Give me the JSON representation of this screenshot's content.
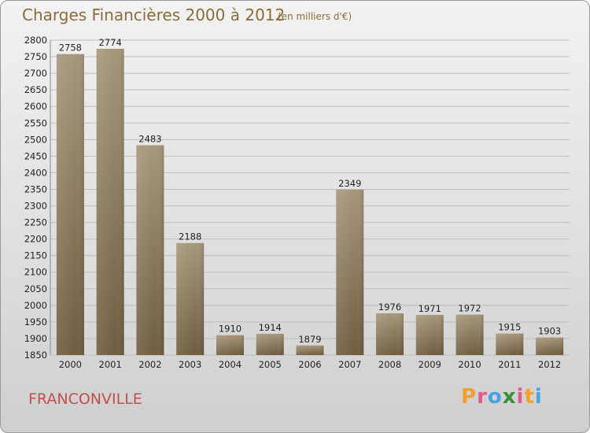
{
  "header": {
    "title": "Charges Financières 2000 à 2012",
    "subtitle": "(en milliers d'€)"
  },
  "footer": {
    "city": "FRANCONVILLE",
    "logo_letters": [
      "P",
      "r",
      "o",
      "x",
      "i",
      "t",
      "i"
    ],
    "logo_colors": [
      "#f0a030",
      "#e05a8c",
      "#4aa3df",
      "#3a8f3a",
      "#e05a8c",
      "#f0a030",
      "#4aa3df"
    ]
  },
  "colors": {
    "bar_top": "#a6967a",
    "bar_bottom": "#6e5d40",
    "grid": "#bdbdbd"
  },
  "chart_data": {
    "type": "bar",
    "title": "Charges Financières 2000 à 2012",
    "subtitle": "(en milliers d'€)",
    "categories": [
      "2000",
      "2001",
      "2002",
      "2003",
      "2004",
      "2005",
      "2006",
      "2007",
      "2008",
      "2009",
      "2010",
      "2011",
      "2012"
    ],
    "values": [
      2758,
      2774,
      2483,
      2188,
      1910,
      1914,
      1879,
      2349,
      1976,
      1971,
      1972,
      1915,
      1903
    ],
    "ylim": [
      1850,
      2800
    ],
    "yticks": [
      1850,
      1900,
      1950,
      2000,
      2050,
      2100,
      2150,
      2200,
      2250,
      2300,
      2350,
      2400,
      2450,
      2500,
      2550,
      2600,
      2650,
      2700,
      2750,
      2800
    ],
    "grid": true,
    "legend": "none"
  }
}
